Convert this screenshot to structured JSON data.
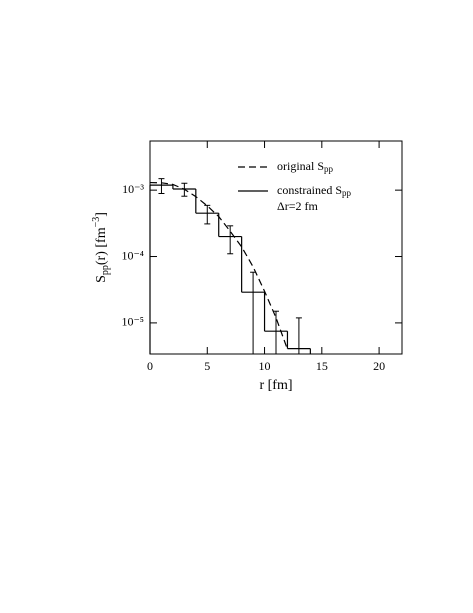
{
  "chart_data": {
    "type": "histogram",
    "xlabel": "r [fm]",
    "ylabel": {
      "main": "S",
      "sub": "pp",
      "rest": "(r) [fm",
      "sup": "−3",
      "end": "]"
    },
    "annotation": "Δr=2 fm",
    "xlim": [
      0,
      22
    ],
    "xticks": [
      0,
      5,
      10,
      15,
      20
    ],
    "ylim": [
      3.4e-06,
      0.0055
    ],
    "yticks": [
      {
        "value": 0.001,
        "label": "10⁻³"
      },
      {
        "value": 0.0001,
        "label": "10⁻⁴"
      },
      {
        "value": 1e-05,
        "label": "10⁻⁵"
      }
    ],
    "log_y": true,
    "legend": "upper right",
    "series": [
      {
        "name": "original S",
        "name_sub": "pp",
        "color": "#000000",
        "style": "dashed",
        "x": [
          0,
          1,
          2,
          3,
          4,
          5,
          6,
          7,
          8,
          9,
          10,
          11,
          12
        ],
        "values": [
          0.0013,
          0.00129,
          0.00122,
          0.00103,
          0.0008,
          0.00058,
          0.0004,
          0.00024,
          0.00014,
          7e-05,
          3e-05,
          1.2e-05,
          4e-06
        ]
      },
      {
        "name": "constrained S",
        "name_sub": "pp",
        "color": "#000000",
        "style": "solid",
        "bins": [
          0,
          2,
          4,
          6,
          8,
          10,
          12,
          14
        ],
        "values": [
          0.00119,
          0.00104,
          0.00045,
          0.0002,
          2.9e-05,
          7.5e-06,
          4.1e-06
        ],
        "errors": [
          0.0003,
          0.00023,
          0.00014,
          9e-05,
          2.9e-05,
          7.5e-06,
          7.8e-06
        ]
      }
    ]
  }
}
